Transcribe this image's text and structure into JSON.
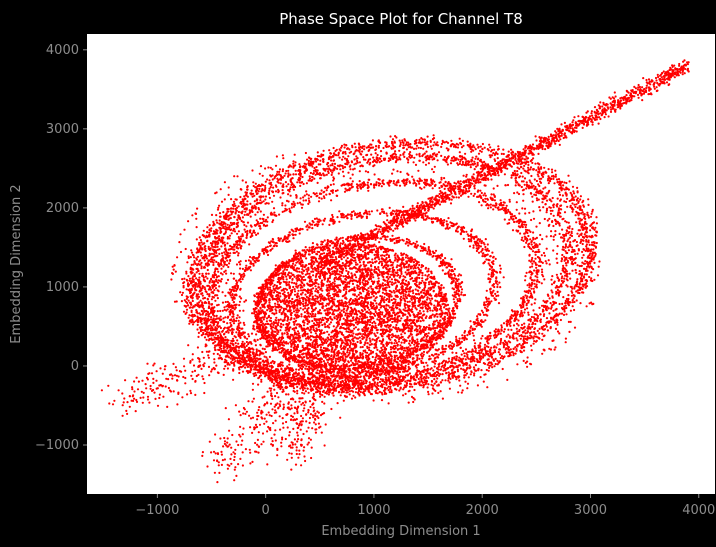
{
  "chart_data": {
    "type": "scatter",
    "title": "Phase Space Plot for Channel T8",
    "xlabel": "Embedding Dimension 1",
    "ylabel": "Embedding Dimension 2",
    "xlim": [
      -1650,
      4150
    ],
    "ylim": [
      -1620,
      4200
    ],
    "x_ticks": [
      -1000,
      0,
      1000,
      2000,
      3000,
      4000
    ],
    "y_ticks": [
      -1000,
      0,
      1000,
      2000,
      3000,
      4000
    ],
    "x_tick_labels": [
      "−1000",
      "0",
      "1000",
      "2000",
      "3000",
      "4000"
    ],
    "y_tick_labels": [
      "−1000",
      "0",
      "1000",
      "2000",
      "3000",
      "4000"
    ],
    "grid": false,
    "series": [
      {
        "color": "#ff0000",
        "marker": "dot",
        "structure": {
          "loops": [
            {
              "cx": 1150,
              "cy": 1250,
              "rx": 1900,
              "ry": 1500,
              "angle_deg": 24,
              "count": 1800
            },
            {
              "cx": 1100,
              "cy": 1200,
              "rx": 1750,
              "ry": 1380,
              "angle_deg": 24,
              "count": 1500
            },
            {
              "cx": 1000,
              "cy": 1050,
              "rx": 1550,
              "ry": 1220,
              "angle_deg": 24,
              "count": 1300
            },
            {
              "cx": 900,
              "cy": 900,
              "rx": 1250,
              "ry": 1000,
              "angle_deg": 24,
              "count": 1100
            },
            {
              "cx": 850,
              "cy": 800,
              "rx": 950,
              "ry": 800,
              "angle_deg": 24,
              "count": 900
            }
          ],
          "core": {
            "cx": 800,
            "cy": 700,
            "rx": 900,
            "ry": 850,
            "count": 4500
          },
          "tail_points": [
            [
              -1350,
              -450
            ],
            [
              -400,
              -1250
            ],
            [
              200,
              -1150
            ]
          ],
          "tail_count": 700,
          "ray": {
            "x0": 500,
            "y0": 1300,
            "x1": 3900,
            "y1": 3800,
            "count": 1400
          },
          "halo": {
            "cx": 1100,
            "cy": 1200,
            "rx": 2000,
            "ry": 1600,
            "count": 900
          }
        }
      }
    ]
  }
}
